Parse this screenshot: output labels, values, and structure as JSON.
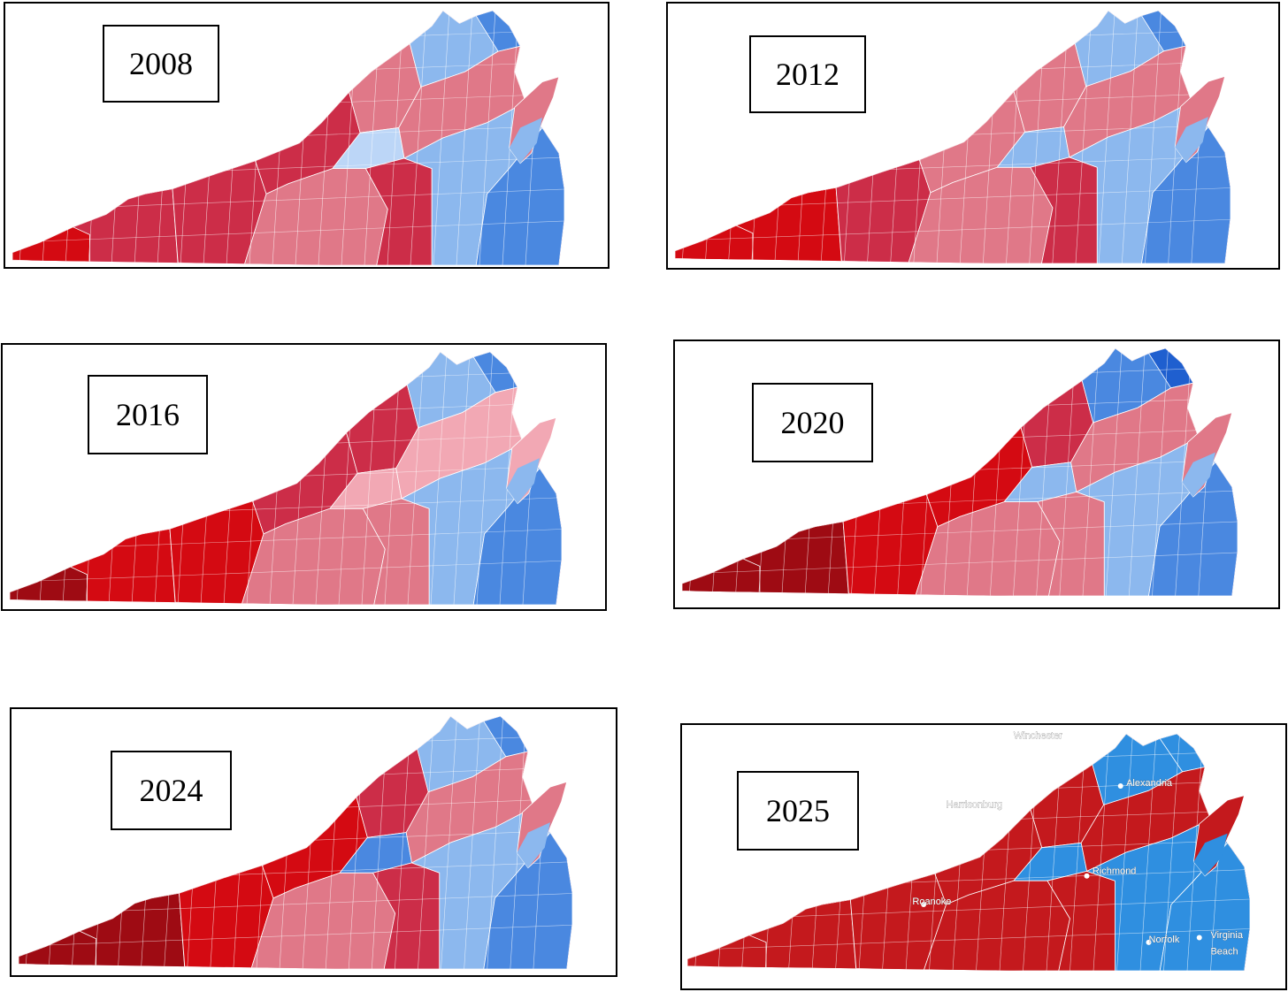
{
  "colors": {
    "rep_strong": "#9e0b13",
    "rep": "#d40a12",
    "rep_mid": "#cc2d48",
    "rep_light": "#e07888",
    "rep_pale": "#f2a8b4",
    "dem_pale": "#bcd6f7",
    "dem_light": "#8cb8ee",
    "dem": "#4a88e0",
    "dem_strong": "#1f5fcf",
    "flat_rep": "#c4191d",
    "flat_dem": "#2f8fe0",
    "border": "#ffffff"
  },
  "maps": [
    {
      "id": "map-2008",
      "year": "2008",
      "style": "shaded"
    },
    {
      "id": "map-2012",
      "year": "2012",
      "style": "shaded"
    },
    {
      "id": "map-2016",
      "year": "2016",
      "style": "shaded"
    },
    {
      "id": "map-2020",
      "year": "2020",
      "style": "shaded"
    },
    {
      "id": "map-2024",
      "year": "2024",
      "style": "shaded"
    },
    {
      "id": "map-2025",
      "year": "2025",
      "style": "flat",
      "cities": [
        {
          "name": "Winchester"
        },
        {
          "name": "Harrisonburg"
        },
        {
          "name": "Alexandria"
        },
        {
          "name": "Richmond"
        },
        {
          "name": "Roanoke"
        },
        {
          "name": "Norfolk"
        },
        {
          "name": "Virginia"
        },
        {
          "name": "Beach"
        }
      ]
    }
  ]
}
